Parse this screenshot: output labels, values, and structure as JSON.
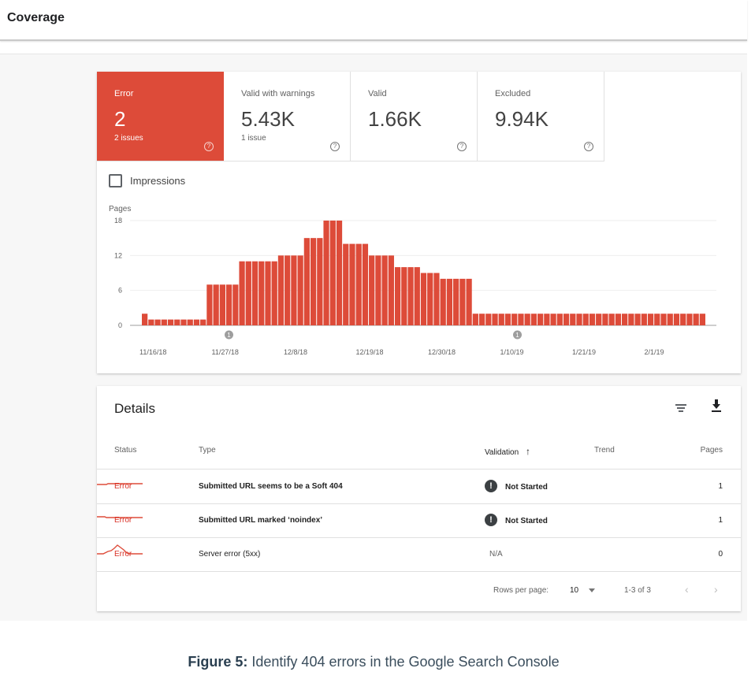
{
  "header": {
    "title": "Coverage"
  },
  "summary": {
    "tiles": [
      {
        "label": "Error",
        "value": "2",
        "sub": "2 issues",
        "active": true
      },
      {
        "label": "Valid with warnings",
        "value": "5.43K",
        "sub": "1 issue",
        "active": false
      },
      {
        "label": "Valid",
        "value": "1.66K",
        "sub": "",
        "active": false
      },
      {
        "label": "Excluded",
        "value": "9.94K",
        "sub": "",
        "active": false
      }
    ],
    "help_glyph": "?",
    "impressions_label": "Impressions"
  },
  "colors": {
    "error": "#dd4b39",
    "bar": "#dd4b39",
    "status_error": "#d93025"
  },
  "chart_data": {
    "type": "bar",
    "ylabel": "Pages",
    "yticks": [
      "18",
      "12",
      "6",
      "0"
    ],
    "ylim": [
      0,
      18
    ],
    "xtick_labels": [
      "11/16/18",
      "11/27/18",
      "12/8/18",
      "12/19/18",
      "12/30/18",
      "1/10/19",
      "1/21/19",
      "2/1/19"
    ],
    "annotations": [
      {
        "label": "1",
        "x": "11/27/18"
      },
      {
        "label": "1",
        "x": "1/10/19"
      }
    ],
    "values": [
      2,
      1,
      1,
      1,
      1,
      1,
      1,
      1,
      1,
      1,
      7,
      7,
      7,
      7,
      7,
      11,
      11,
      11,
      11,
      11,
      11,
      12,
      12,
      12,
      12,
      15,
      15,
      15,
      18,
      18,
      18,
      14,
      14,
      14,
      14,
      12,
      12,
      12,
      12,
      10,
      10,
      10,
      10,
      9,
      9,
      9,
      8,
      8,
      8,
      8,
      8,
      2,
      2,
      2,
      2,
      2,
      2,
      2,
      2,
      2,
      2,
      2,
      2,
      2,
      2,
      2,
      2,
      2,
      2,
      2,
      2,
      2,
      2,
      2,
      2,
      2,
      2,
      2,
      2,
      2,
      2,
      2,
      2,
      2,
      2,
      2,
      2
    ]
  },
  "details": {
    "title": "Details",
    "filter_icon": "filter-icon",
    "download_icon": "download-icon",
    "columns": {
      "status": "Status",
      "type": "Type",
      "validation": "Validation",
      "sort_arrow": "↑",
      "trend": "Trend",
      "pages": "Pages"
    },
    "rows": [
      {
        "status": "Error",
        "type": "Submitted URL seems to be a Soft 404",
        "validation": "Not Started",
        "pages": "1"
      },
      {
        "status": "Error",
        "type": "Submitted URL marked ‘noindex’",
        "validation": "Not Started",
        "pages": "1"
      },
      {
        "status": "Error",
        "type": "Server error (5xx)",
        "validation": "N/A",
        "pages": "0"
      }
    ],
    "pagination": {
      "rows_per_page_label": "Rows per page:",
      "rows_per_page_value": "10",
      "range": "1-3 of 3"
    }
  },
  "caption": {
    "prefix": "Figure 5:",
    "text": " Identify 404 errors in the Google Search Console"
  }
}
